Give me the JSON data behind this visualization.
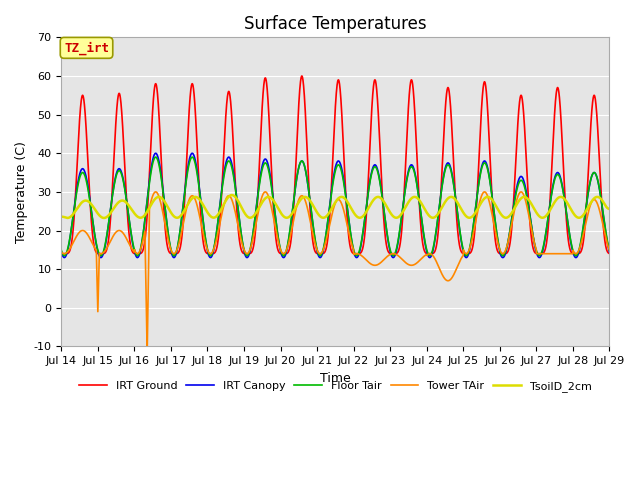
{
  "title": "Surface Temperatures",
  "xlabel": "Time",
  "ylabel": "Temperature (C)",
  "ylim": [
    -10,
    70
  ],
  "xlim": [
    0,
    15
  ],
  "x_tick_labels": [
    "Jul 14",
    "Jul 15",
    "Jul 16",
    "Jul 17",
    "Jul 18",
    "Jul 19",
    "Jul 20",
    "Jul 21",
    "Jul 22",
    "Jul 23",
    "Jul 24",
    "Jul 25",
    "Jul 26",
    "Jul 27",
    "Jul 28",
    "Jul 29"
  ],
  "background_color": "#e5e5e5",
  "figure_color": "#ffffff",
  "annotation_text": "TZ_irt",
  "annotation_fc": "#ffff99",
  "annotation_ec": "#999900",
  "annotation_tc": "#cc0000",
  "legend": [
    "IRT Ground",
    "IRT Canopy",
    "Floor Tair",
    "Tower TAir",
    "TsoilD_2cm"
  ],
  "line_colors": [
    "#ff0000",
    "#0000ee",
    "#00bb00",
    "#ff8800",
    "#dddd00"
  ],
  "line_widths": [
    1.2,
    1.2,
    1.2,
    1.2,
    1.8
  ],
  "yticks": [
    -10,
    0,
    10,
    20,
    30,
    40,
    50,
    60,
    70
  ],
  "title_fontsize": 12,
  "axis_label_fontsize": 9,
  "tick_fontsize": 8
}
